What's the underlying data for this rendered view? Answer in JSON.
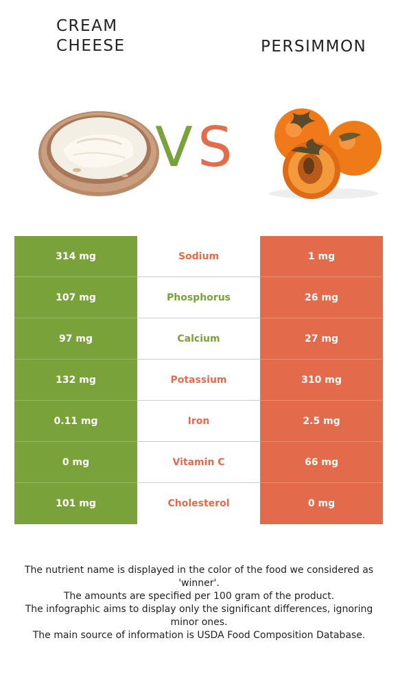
{
  "header": {
    "left_title": "CREAM\nCHEESE",
    "right_title": "PERSIMMON",
    "vs_v": "V",
    "vs_s": "S"
  },
  "colors": {
    "left_food": "#7aa23b",
    "right_food": "#e26b4b"
  },
  "nutrients": [
    {
      "left": "314 mg",
      "name": "Sodium",
      "right": "1 mg",
      "winner_color": "#e26b4b"
    },
    {
      "left": "107 mg",
      "name": "Phosphorus",
      "right": "26 mg",
      "winner_color": "#7aa23b"
    },
    {
      "left": "97 mg",
      "name": "Calcium",
      "right": "27 mg",
      "winner_color": "#7aa23b"
    },
    {
      "left": "132 mg",
      "name": "Potassium",
      "right": "310 mg",
      "winner_color": "#e26b4b"
    },
    {
      "left": "0.11 mg",
      "name": "Iron",
      "right": "2.5 mg",
      "winner_color": "#e26b4b"
    },
    {
      "left": "0 mg",
      "name": "Vitamin C",
      "right": "66 mg",
      "winner_color": "#e26b4b"
    },
    {
      "left": "101 mg",
      "name": "Cholesterol",
      "right": "0 mg",
      "winner_color": "#e26b4b"
    }
  ],
  "footer": {
    "line1": "The nutrient name is displayed in the color of the food we considered as 'winner'.",
    "line2": "The amounts are specified per 100 gram of the product.",
    "line3": "The infographic aims to display only the significant differences, ignoring minor ones.",
    "line4": "The main source of information is USDA Food Composition Database."
  }
}
